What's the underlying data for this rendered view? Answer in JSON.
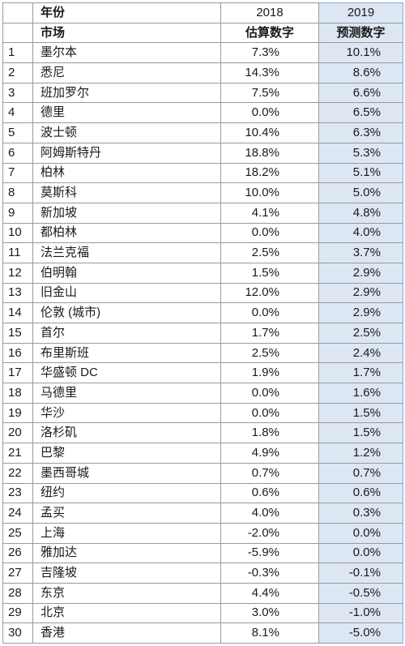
{
  "colors": {
    "forecast_bg": "#dde7f4",
    "forecast_border": "#8ea8d2",
    "grid": "#9a9a9a"
  },
  "chart_data": {
    "type": "table",
    "header": {
      "row1": {
        "market_col": "年份",
        "col_2018": "2018",
        "col_2019": "2019"
      },
      "row2": {
        "market_col": "市场",
        "col_2018": "估算数字",
        "col_2019": "预测数字"
      }
    },
    "rows": [
      {
        "rank": "1",
        "market": "墨尔本",
        "est_2018": "7.3%",
        "forecast_2019": "10.1%"
      },
      {
        "rank": "2",
        "market": "悉尼",
        "est_2018": "14.3%",
        "forecast_2019": "8.6%"
      },
      {
        "rank": "3",
        "market": "班加罗尔",
        "est_2018": "7.5%",
        "forecast_2019": "6.6%"
      },
      {
        "rank": "4",
        "market": "德里",
        "est_2018": "0.0%",
        "forecast_2019": "6.5%"
      },
      {
        "rank": "5",
        "market": "波士顿",
        "est_2018": "10.4%",
        "forecast_2019": "6.3%"
      },
      {
        "rank": "6",
        "market": "阿姆斯特丹",
        "est_2018": "18.8%",
        "forecast_2019": "5.3%"
      },
      {
        "rank": "7",
        "market": "柏林",
        "est_2018": "18.2%",
        "forecast_2019": "5.1%"
      },
      {
        "rank": "8",
        "market": "莫斯科",
        "est_2018": "10.0%",
        "forecast_2019": "5.0%"
      },
      {
        "rank": "9",
        "market": "新加坡",
        "est_2018": "4.1%",
        "forecast_2019": "4.8%"
      },
      {
        "rank": "10",
        "market": "都柏林",
        "est_2018": "0.0%",
        "forecast_2019": "4.0%"
      },
      {
        "rank": "11",
        "market": "法兰克福",
        "est_2018": "2.5%",
        "forecast_2019": "3.7%"
      },
      {
        "rank": "12",
        "market": "伯明翰",
        "est_2018": "1.5%",
        "forecast_2019": "2.9%"
      },
      {
        "rank": "13",
        "market": "旧金山",
        "est_2018": "12.0%",
        "forecast_2019": "2.9%"
      },
      {
        "rank": "14",
        "market": "伦敦 (城市)",
        "est_2018": "0.0%",
        "forecast_2019": "2.9%"
      },
      {
        "rank": "15",
        "market": "首尔",
        "est_2018": "1.7%",
        "forecast_2019": "2.5%"
      },
      {
        "rank": "16",
        "market": "布里斯班",
        "est_2018": "2.5%",
        "forecast_2019": "2.4%"
      },
      {
        "rank": "17",
        "market": "华盛顿 DC",
        "est_2018": "1.9%",
        "forecast_2019": "1.7%"
      },
      {
        "rank": "18",
        "market": "马德里",
        "est_2018": "0.0%",
        "forecast_2019": "1.6%"
      },
      {
        "rank": "19",
        "market": "华沙",
        "est_2018": "0.0%",
        "forecast_2019": "1.5%"
      },
      {
        "rank": "20",
        "market": "洛杉矶",
        "est_2018": "1.8%",
        "forecast_2019": "1.5%"
      },
      {
        "rank": "21",
        "market": "巴黎",
        "est_2018": "4.9%",
        "forecast_2019": "1.2%"
      },
      {
        "rank": "22",
        "market": "墨西哥城",
        "est_2018": "0.7%",
        "forecast_2019": "0.7%"
      },
      {
        "rank": "23",
        "market": "纽约",
        "est_2018": "0.6%",
        "forecast_2019": "0.6%"
      },
      {
        "rank": "24",
        "market": "孟买",
        "est_2018": "4.0%",
        "forecast_2019": "0.3%"
      },
      {
        "rank": "25",
        "market": "上海",
        "est_2018": "-2.0%",
        "forecast_2019": "0.0%"
      },
      {
        "rank": "26",
        "market": "雅加达",
        "est_2018": "-5.9%",
        "forecast_2019": "0.0%"
      },
      {
        "rank": "27",
        "market": "吉隆坡",
        "est_2018": "-0.3%",
        "forecast_2019": "-0.1%"
      },
      {
        "rank": "28",
        "market": "东京",
        "est_2018": "4.4%",
        "forecast_2019": "-0.5%"
      },
      {
        "rank": "29",
        "market": "北京",
        "est_2018": "3.0%",
        "forecast_2019": "-1.0%"
      },
      {
        "rank": "30",
        "market": "香港",
        "est_2018": "8.1%",
        "forecast_2019": "-5.0%"
      }
    ]
  }
}
